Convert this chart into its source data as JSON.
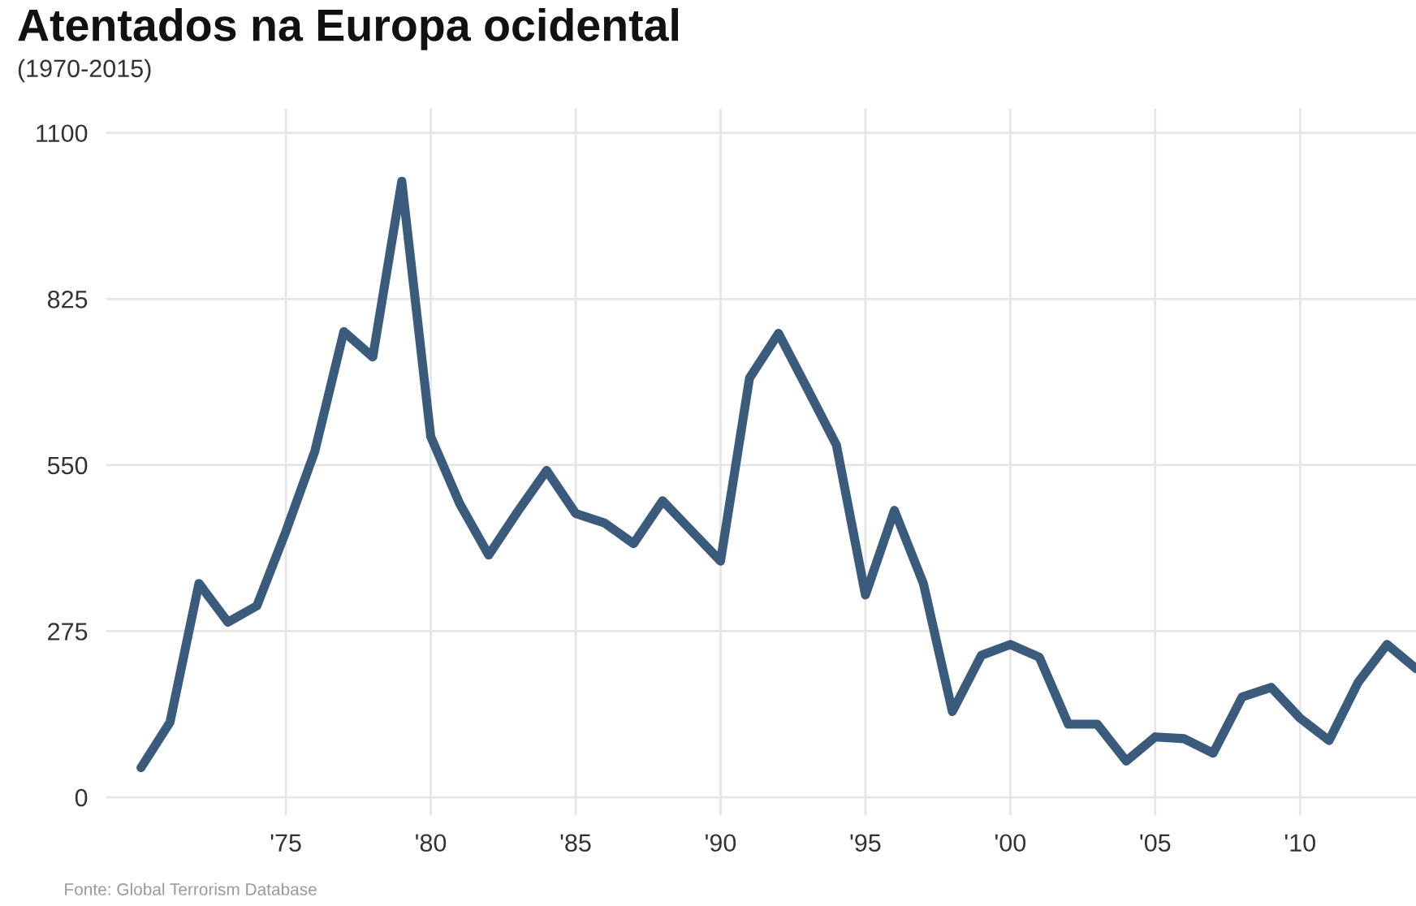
{
  "chart_data": {
    "type": "line",
    "title": "Atentados na Europa ocidental",
    "subtitle": "(1970-2015)",
    "annotations": [
      "Fonte: Global Terrorism Database"
    ],
    "x": [
      1970,
      1971,
      1972,
      1973,
      1974,
      1975,
      1976,
      1977,
      1978,
      1979,
      1980,
      1981,
      1982,
      1983,
      1984,
      1985,
      1986,
      1987,
      1988,
      1989,
      1990,
      1991,
      1992,
      1993,
      1994,
      1995,
      1996,
      1997,
      1998,
      1999,
      2000,
      2001,
      2002,
      2003,
      2004,
      2005,
      2006,
      2007,
      2008,
      2009,
      2010,
      2011,
      2012,
      2013,
      2014
    ],
    "series": [
      {
        "color": "#3b5b7c",
        "values": [
          49,
          124,
          354,
          290,
          317,
          440,
          573,
          771,
          729,
          1020,
          597,
          486,
          401,
          473,
          541,
          470,
          454,
          420,
          491,
          441,
          391,
          694,
          768,
          676,
          583,
          335,
          475,
          354,
          142,
          235,
          253,
          232,
          121,
          121,
          60,
          100,
          97,
          73,
          166,
          182,
          131,
          94,
          190,
          253,
          213
        ]
      }
    ],
    "xlim": [
      1968.8,
      2014
    ],
    "ylim": [
      -30,
      1140
    ],
    "xticks": [
      {
        "value": 1975,
        "label": "'75"
      },
      {
        "value": 1980,
        "label": "'80"
      },
      {
        "value": 1985,
        "label": "'85"
      },
      {
        "value": 1990,
        "label": "'90"
      },
      {
        "value": 1995,
        "label": "'95"
      },
      {
        "value": 2000,
        "label": "'00"
      },
      {
        "value": 2005,
        "label": "'05"
      },
      {
        "value": 2010,
        "label": "'10"
      }
    ],
    "yticks": [
      0,
      275,
      550,
      825,
      1100
    ],
    "grid": true,
    "marker": "none",
    "line_style": "solid",
    "legend": false
  }
}
